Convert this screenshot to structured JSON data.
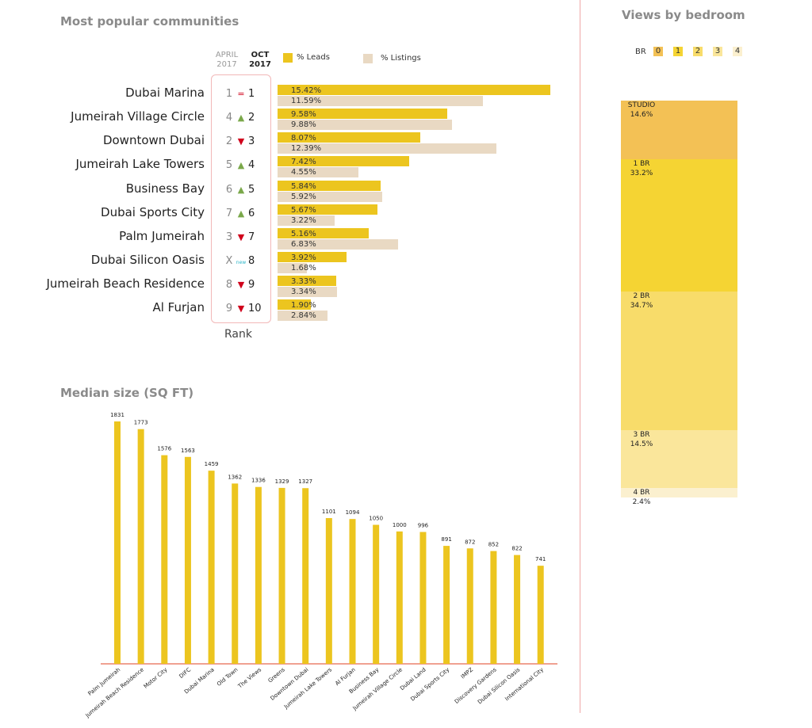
{
  "popular_communities": {
    "title": "Most popular communities",
    "col_april": "APRIL",
    "col_april_year": "2017",
    "col_oct": "OCT",
    "col_oct_year": "2017",
    "legend_leads": "% Leads",
    "legend_listings": "% Listings",
    "rank_label": "Rank",
    "colors": {
      "leads": "#ecc51f",
      "listings": "#e9d9c3",
      "up": "#7aa84a",
      "down": "#d0021b",
      "new": "#2bb5c9"
    },
    "rows": [
      {
        "name": "Dubai Marina",
        "old": "1",
        "indicator": "=",
        "dir": "same",
        "new": "1",
        "leads": 15.42,
        "listings": 11.59,
        "leads_label": "15.42%",
        "listings_label": "11.59%"
      },
      {
        "name": "Jumeirah Village Circle",
        "old": "4",
        "indicator": "▲",
        "dir": "up",
        "new": "2",
        "leads": 9.58,
        "listings": 9.88,
        "leads_label": "9.58%",
        "listings_label": "9.88%"
      },
      {
        "name": "Downtown Dubai",
        "old": "2",
        "indicator": "▼",
        "dir": "down",
        "new": "3",
        "leads": 8.07,
        "listings": 12.39,
        "leads_label": "8.07%",
        "listings_label": "12.39%"
      },
      {
        "name": "Jumeirah Lake Towers",
        "old": "5",
        "indicator": "▲",
        "dir": "up",
        "new": "4",
        "leads": 7.42,
        "listings": 4.55,
        "leads_label": "7.42%",
        "listings_label": "4.55%"
      },
      {
        "name": "Business Bay",
        "old": "6",
        "indicator": "▲",
        "dir": "up",
        "new": "5",
        "leads": 5.84,
        "listings": 5.92,
        "leads_label": "5.84%",
        "listings_label": "5.92%"
      },
      {
        "name": "Dubai Sports City",
        "old": "7",
        "indicator": "▲",
        "dir": "up",
        "new": "6",
        "leads": 5.67,
        "listings": 3.22,
        "leads_label": "5.67%",
        "listings_label": "3.22%"
      },
      {
        "name": "Palm Jumeirah",
        "old": "3",
        "indicator": "▼",
        "dir": "down",
        "new": "7",
        "leads": 5.16,
        "listings": 6.83,
        "leads_label": "5.16%",
        "listings_label": "6.83%"
      },
      {
        "name": "Dubai Silicon Oasis",
        "old": "X",
        "indicator": "new",
        "dir": "new",
        "new": "8",
        "leads": 3.92,
        "listings": 1.68,
        "leads_label": "3.92%",
        "listings_label": "1.68%"
      },
      {
        "name": "Jumeirah Beach Residence",
        "old": "8",
        "indicator": "▼",
        "dir": "down",
        "new": "9",
        "leads": 3.33,
        "listings": 3.34,
        "leads_label": "3.33%",
        "listings_label": "3.34%"
      },
      {
        "name": "Al Furjan",
        "old": "9",
        "indicator": "▼",
        "dir": "down",
        "new": "10",
        "leads": 1.9,
        "listings": 2.84,
        "leads_label": "1.90%",
        "listings_label": "2.84%"
      }
    ]
  },
  "bedroom": {
    "title": "Views by bedroom",
    "key_label": "BR",
    "keys": [
      "0",
      "1",
      "2",
      "3",
      "4"
    ],
    "segments": [
      {
        "label": "STUDIO",
        "value": 14.6,
        "value_label": "14.6%",
        "color": "#f3c155"
      },
      {
        "label": "1 BR",
        "value": 33.2,
        "value_label": "33.2%",
        "color": "#f5d433"
      },
      {
        "label": "2 BR",
        "value": 34.7,
        "value_label": "34.7%",
        "color": "#f8dc6a"
      },
      {
        "label": "3 BR",
        "value": 14.5,
        "value_label": "14.5%",
        "color": "#fae69b"
      },
      {
        "label": "4 BR",
        "value": 2.4,
        "value_label": "2.4%",
        "color": "#fbf0cf"
      }
    ]
  },
  "median": {
    "title": "Median size (SQ FT)",
    "bar_color": "#ecc51f",
    "axis_color": "#e8694f"
  },
  "chart_data": [
    {
      "type": "bar",
      "orientation": "horizontal",
      "title": "Most popular communities",
      "categories": [
        "Dubai Marina",
        "Jumeirah Village Circle",
        "Downtown Dubai",
        "Jumeirah Lake Towers",
        "Business Bay",
        "Dubai Sports City",
        "Palm Jumeirah",
        "Dubai Silicon Oasis",
        "Jumeirah Beach Residence",
        "Al Furjan"
      ],
      "series": [
        {
          "name": "% Leads",
          "values": [
            15.42,
            9.58,
            8.07,
            7.42,
            5.84,
            5.67,
            5.16,
            3.92,
            3.33,
            1.9
          ]
        },
        {
          "name": "% Listings",
          "values": [
            11.59,
            9.88,
            12.39,
            4.55,
            5.92,
            3.22,
            6.83,
            1.68,
            3.34,
            2.84
          ]
        }
      ]
    },
    {
      "type": "bar",
      "title": "Median size (SQ FT)",
      "categories": [
        "Palm Jumeirah",
        "Jumeirah Beach Residence",
        "Motor City",
        "DIFC",
        "Dubai Marina",
        "Old Town",
        "The Views",
        "Greens",
        "Downtown Dubai",
        "Jumeirah Lake Towers",
        "Al Furjan",
        "Business Bay",
        "Jumeirah Village Circle",
        "Dubai Land",
        "Dubai Sports City",
        "IMPZ",
        "Discovery Gardens",
        "Dubai Silicon Oasis",
        "International City"
      ],
      "values": [
        1831,
        1773,
        1576,
        1563,
        1459,
        1362,
        1336,
        1329,
        1327,
        1101,
        1094,
        1050,
        1000,
        996,
        891,
        872,
        852,
        822,
        741
      ],
      "ylim": [
        0,
        1900
      ]
    },
    {
      "type": "bar",
      "stacked": true,
      "title": "Views by bedroom",
      "categories": [
        "STUDIO",
        "1 BR",
        "2 BR",
        "3 BR",
        "4 BR"
      ],
      "values": [
        14.6,
        33.2,
        34.7,
        14.5,
        2.4
      ]
    }
  ]
}
